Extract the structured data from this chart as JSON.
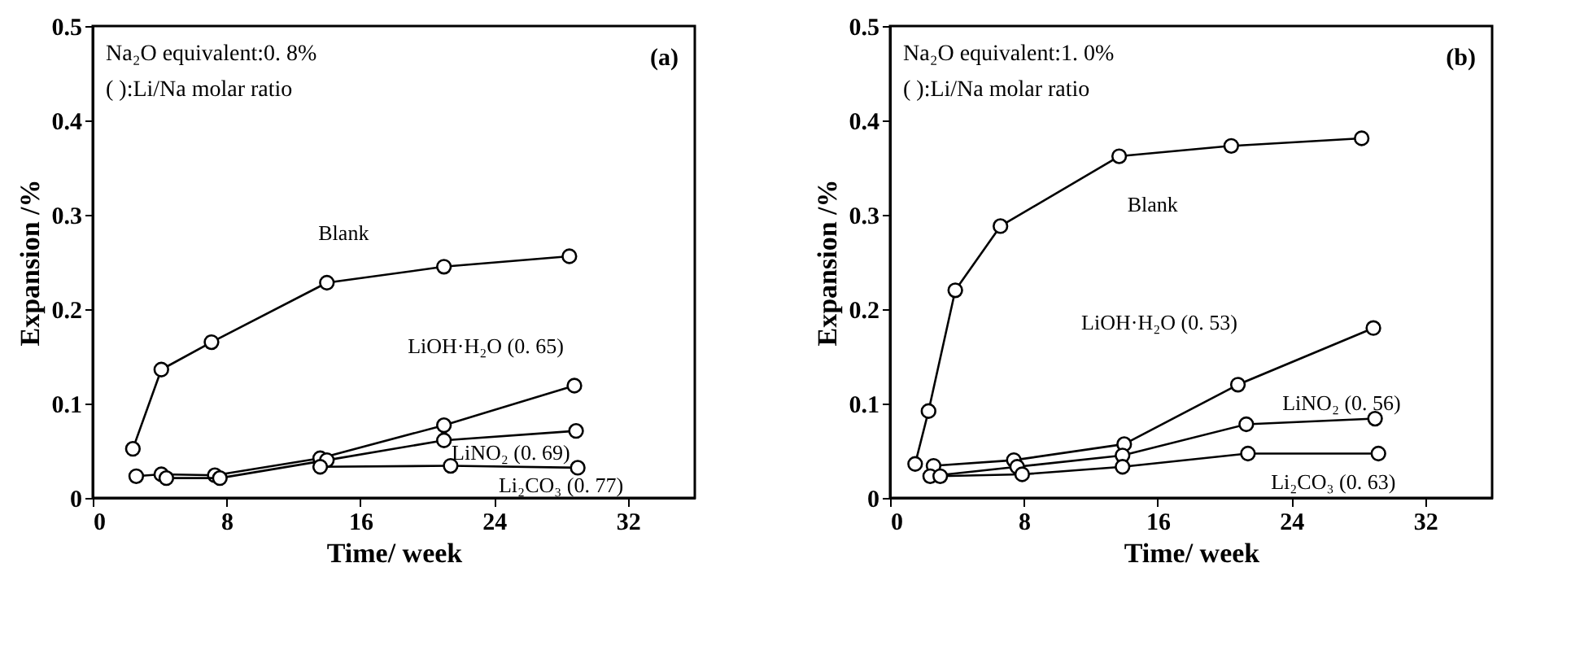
{
  "chart_data": [
    {
      "type": "line",
      "xlabel": "Time/ week",
      "ylabel": "Expansion /%",
      "xlim": [
        0,
        36
      ],
      "xticks": [
        0,
        8,
        16,
        24,
        32
      ],
      "ylim": [
        0,
        0.5
      ],
      "yticks": [
        0,
        0.1,
        0.2,
        0.3,
        0.4,
        0.5
      ],
      "grid": false,
      "marker": "circle",
      "line_style": "solid",
      "annotations": [
        "Na₂O equivalent:0. 8%",
        "( ):Li/Na molar ratio",
        "(a)"
      ],
      "series": [
        {
          "name": "Blank",
          "color": "#000000",
          "x": [
            2.4,
            4.1,
            7.1,
            14,
            21,
            28.5
          ],
          "values": [
            0.052,
            0.136,
            0.165,
            0.228,
            0.245,
            0.256
          ]
        },
        {
          "name": "LiOH·H₂O (0. 65)",
          "color": "#000000",
          "x": [
            2.6,
            4.1,
            7.3,
            13.6,
            21,
            28.8
          ],
          "values": [
            0.023,
            0.025,
            0.024,
            0.042,
            0.077,
            0.119
          ]
        },
        {
          "name": "LiNO₂ (0. 69)",
          "color": "#000000",
          "x": [
            4.4,
            7.6,
            14,
            21,
            28.9
          ],
          "values": [
            0.021,
            0.021,
            0.04,
            0.061,
            0.071
          ]
        },
        {
          "name": "Li₂CO₃ (0. 77)",
          "color": "#000000",
          "x": [
            13.6,
            21.4,
            29
          ],
          "values": [
            0.033,
            0.034,
            0.032
          ]
        }
      ]
    },
    {
      "type": "line",
      "xlabel": "Time/ week",
      "ylabel": "Expansion /%",
      "xlim": [
        0,
        36
      ],
      "xticks": [
        0,
        8,
        16,
        24,
        32
      ],
      "ylim": [
        0,
        0.5
      ],
      "yticks": [
        0,
        0.1,
        0.2,
        0.3,
        0.4,
        0.5
      ],
      "grid": false,
      "marker": "circle",
      "line_style": "solid",
      "annotations": [
        "Na₂O equivalent:1. 0%",
        "( ):Li/Na molar ratio",
        "(b)"
      ],
      "series": [
        {
          "name": "Blank",
          "color": "#000000",
          "x": [
            1.5,
            2.3,
            3.9,
            6.6,
            13.7,
            20.4,
            28.2
          ],
          "values": [
            0.036,
            0.092,
            0.22,
            0.288,
            0.362,
            0.373,
            0.381
          ]
        },
        {
          "name": "LiOH·H₂O (0. 53)",
          "color": "#000000",
          "x": [
            2.6,
            7.4,
            14,
            20.8,
            28.9
          ],
          "values": [
            0.034,
            0.04,
            0.057,
            0.12,
            0.18
          ]
        },
        {
          "name": "LiNO₂ (0. 56)",
          "color": "#000000",
          "x": [
            2.4,
            7.6,
            13.9,
            21.3,
            29
          ],
          "values": [
            0.023,
            0.033,
            0.045,
            0.078,
            0.084
          ]
        },
        {
          "name": "Li₂CO₃ (0. 63)",
          "color": "#000000",
          "x": [
            3,
            7.9,
            13.9,
            21.4,
            29.2
          ],
          "values": [
            0.023,
            0.025,
            0.033,
            0.047,
            0.047
          ]
        }
      ]
    }
  ]
}
